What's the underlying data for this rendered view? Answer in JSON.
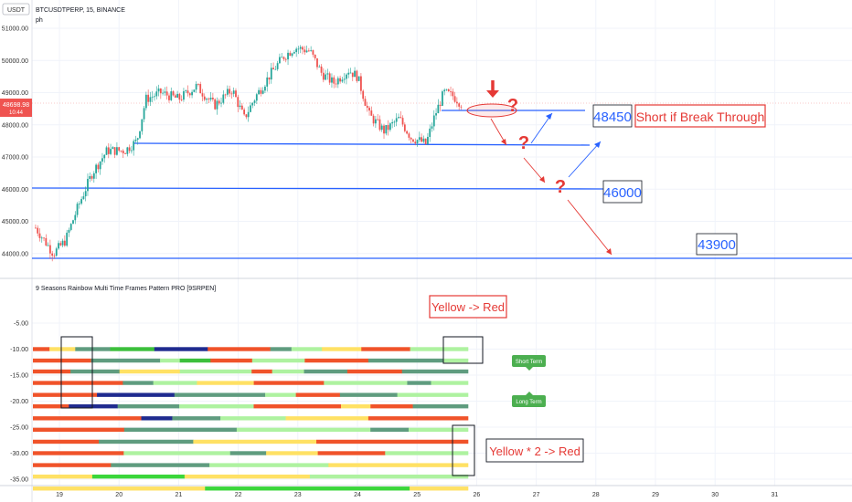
{
  "header": {
    "currency_badge": "USDT",
    "symbol_line": "BTCUSDTPERP, 15, BINANCE",
    "sub_line": "ph"
  },
  "price_tag": {
    "price": "48698.98",
    "time": "10:44"
  },
  "colors": {
    "up": "#26a69a",
    "down": "#ef5350",
    "blue_line": "#2962ff",
    "red_arrow": "#e53935",
    "price_tag": "#ef5350",
    "badge_green": "#4caf50",
    "grid": "#f0f3fa"
  },
  "chart_data": [
    {
      "type": "candlestick",
      "title": "BTCUSDTPERP, 15, BINANCE",
      "x_ticks": [
        "19",
        "20",
        "21",
        "22",
        "23",
        "24",
        "25",
        "26",
        "27",
        "28",
        "29",
        "30",
        "31"
      ],
      "y_ticks": [
        "51000.00",
        "50000.00",
        "49000.00",
        "48000.00",
        "47000.00",
        "46000.00",
        "45000.00",
        "44000.00"
      ],
      "ylim": [
        43700,
        51400
      ],
      "series": [
        {
          "x": [
            18.6,
            18.9,
            19.1,
            19.3,
            19.55,
            19.8,
            20.1,
            20.3,
            20.45,
            20.7,
            21.0,
            21.3,
            21.6,
            21.9,
            22.1,
            22.3,
            22.55,
            22.75,
            22.95,
            23.2,
            23.4,
            23.6,
            23.85,
            24.0,
            24.2,
            24.45,
            24.7,
            24.9,
            25.05,
            25.15,
            25.3,
            25.45,
            25.6,
            25.75
          ],
          "y": [
            44800,
            44000,
            44400,
            45400,
            46500,
            47200,
            47200,
            47500,
            48800,
            49000,
            48800,
            49200,
            48600,
            49100,
            48200,
            48900,
            49600,
            50100,
            50400,
            50300,
            49600,
            49300,
            49700,
            49500,
            48300,
            47800,
            48200,
            47600,
            47500,
            47400,
            48300,
            49000,
            48900,
            48650
          ]
        }
      ],
      "horizontal_levels": [
        47600,
        47400,
        46000,
        43900
      ],
      "annotations": [
        "48450",
        "Short if Break  Through",
        "46000",
        "43900"
      ]
    },
    {
      "type": "heatmap",
      "title": "9 Seasons Rainbow Multi Time Frames Pattern PRO [9SRPEN]",
      "y_ticks": [
        "-5.00",
        "-10.00",
        "-15.00",
        "-20.00",
        "-25.00",
        "-30.00",
        "-35.00"
      ],
      "ylim": [
        -40,
        -2
      ],
      "rows": [
        {
          "y": -10,
          "colors": [
            "orange",
            "yellow",
            "teal",
            "green",
            "navy",
            "orange",
            "teal",
            "light-green",
            "yellow",
            "orange",
            "light-green"
          ]
        },
        {
          "y": -12.2,
          "colors": [
            "orange",
            "teal",
            "light-green",
            "green",
            "orange",
            "light-green",
            "orange",
            "teal",
            "light-green"
          ]
        },
        {
          "y": -14.3,
          "colors": [
            "orange",
            "teal",
            "yellow",
            "light-green",
            "orange",
            "light-green",
            "teal",
            "orange",
            "teal"
          ]
        },
        {
          "y": -16.5,
          "colors": [
            "orange",
            "teal",
            "light-green",
            "yellow",
            "orange",
            "light-green",
            "teal",
            "light-green"
          ]
        },
        {
          "y": -18.8,
          "colors": [
            "orange",
            "navy",
            "teal",
            "light-green",
            "orange",
            "teal",
            "light-green"
          ]
        },
        {
          "y": -21,
          "colors": [
            "orange",
            "navy",
            "teal",
            "light-green",
            "orange",
            "yellow",
            "orange",
            "teal"
          ]
        },
        {
          "y": -23.3,
          "colors": [
            "orange",
            "navy",
            "teal",
            "light-green",
            "yellow",
            "orange"
          ]
        },
        {
          "y": -25.5,
          "colors": [
            "orange",
            "teal",
            "light-green",
            "teal",
            "light-green"
          ]
        },
        {
          "y": -27.8,
          "colors": [
            "orange",
            "teal",
            "yellow",
            "orange"
          ]
        },
        {
          "y": -30,
          "colors": [
            "orange",
            "light-green",
            "teal",
            "yellow",
            "orange",
            "light-green"
          ]
        },
        {
          "y": -32.3,
          "colors": [
            "orange",
            "teal",
            "light-green",
            "yellow"
          ]
        },
        {
          "y": -34.5,
          "colors": [
            "yellow",
            "bright-green",
            "yellow",
            "light-green"
          ]
        },
        {
          "y": -36.8,
          "colors": [
            "yellow",
            "bright-green",
            "yellow"
          ]
        }
      ],
      "annotations": [
        "Yellow -> Red",
        "Short Term",
        "Long Term",
        "Yellow * 2 -> Red"
      ]
    }
  ]
}
